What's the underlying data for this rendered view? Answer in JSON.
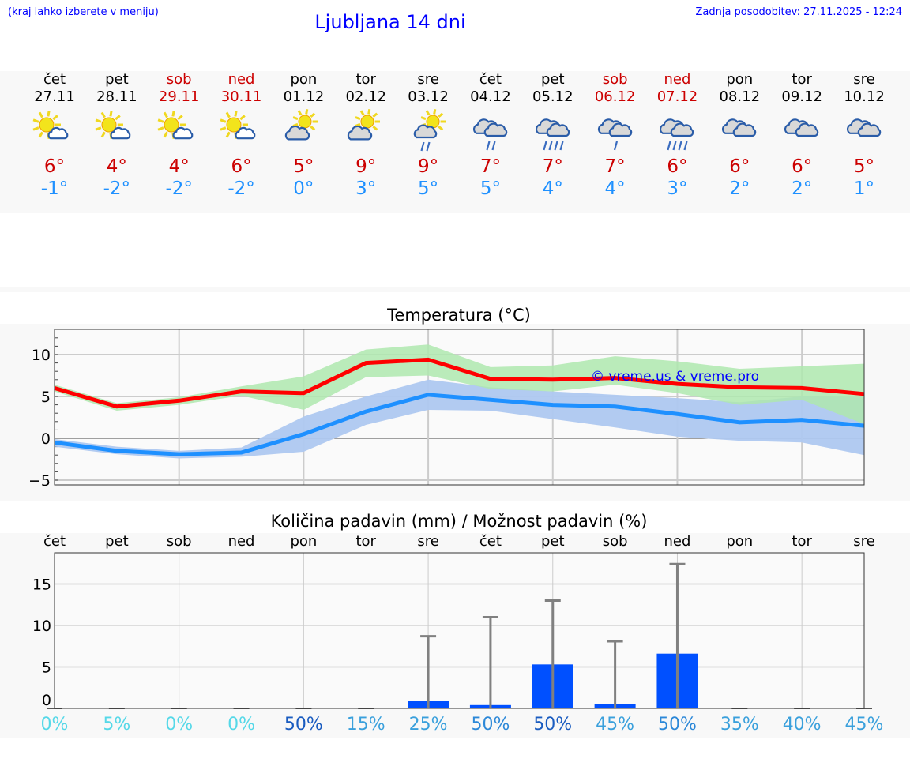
{
  "header": {
    "hint": "(kraj lahko izberete v meniju)",
    "title": "Ljubljana 14 dni",
    "updated": "Zadnja posodobitev: 27.11.2025 - 12:24"
  },
  "days": [
    {
      "name": "čet",
      "date": "27.11",
      "weekend": false,
      "icon": "sun-small-cloud",
      "max": "6°",
      "min": "-1°"
    },
    {
      "name": "pet",
      "date": "28.11",
      "weekend": false,
      "icon": "sun-small-cloud",
      "max": "4°",
      "min": "-2°"
    },
    {
      "name": "sob",
      "date": "29.11",
      "weekend": true,
      "icon": "sun-small-cloud",
      "max": "4°",
      "min": "-2°"
    },
    {
      "name": "ned",
      "date": "30.11",
      "weekend": true,
      "icon": "sun-small-cloud",
      "max": "6°",
      "min": "-2°"
    },
    {
      "name": "pon",
      "date": "01.12",
      "weekend": false,
      "icon": "cloud-sun",
      "max": "5°",
      "min": "0°"
    },
    {
      "name": "tor",
      "date": "02.12",
      "weekend": false,
      "icon": "cloud-sun",
      "max": "9°",
      "min": "3°"
    },
    {
      "name": "sre",
      "date": "03.12",
      "weekend": false,
      "icon": "cloud-sun-rain",
      "max": "9°",
      "min": "5°"
    },
    {
      "name": "čet",
      "date": "04.12",
      "weekend": false,
      "icon": "cloud-rain-2",
      "max": "7°",
      "min": "5°"
    },
    {
      "name": "pet",
      "date": "05.12",
      "weekend": false,
      "icon": "cloud-rain-4",
      "max": "7°",
      "min": "4°"
    },
    {
      "name": "sob",
      "date": "06.12",
      "weekend": true,
      "icon": "cloud-rain-1",
      "max": "7°",
      "min": "4°"
    },
    {
      "name": "ned",
      "date": "07.12",
      "weekend": true,
      "icon": "cloud-rain-4",
      "max": "6°",
      "min": "3°"
    },
    {
      "name": "pon",
      "date": "08.12",
      "weekend": false,
      "icon": "cloud",
      "max": "6°",
      "min": "2°"
    },
    {
      "name": "tor",
      "date": "09.12",
      "weekend": false,
      "icon": "cloud",
      "max": "6°",
      "min": "2°"
    },
    {
      "name": "sre",
      "date": "10.12",
      "weekend": false,
      "icon": "cloud",
      "max": "5°",
      "min": "1°"
    }
  ],
  "colors": {
    "max": "#ff0000",
    "min": "#1e90ff",
    "max_band": "#aee8ae",
    "min_band": "#aec8f0",
    "bar": "#0050ff",
    "whisker": "#808080",
    "weekend": "#cc0000"
  },
  "chart_data": [
    {
      "type": "line",
      "title": "Temperatura (°C)",
      "ylim": [
        -5.6,
        13
      ],
      "yticks": [
        "10",
        "5",
        "0",
        "−5"
      ],
      "ytick_values": [
        10,
        5,
        0,
        -5
      ],
      "grid": true,
      "watermark": "© vreme.us & vreme.pro",
      "x": [
        "27.11",
        "28.11",
        "29.11",
        "30.11",
        "01.12",
        "02.12",
        "03.12",
        "04.12",
        "05.12",
        "06.12",
        "07.12",
        "08.12",
        "09.12",
        "10.12"
      ],
      "series": [
        {
          "key": "max",
          "values": [
            6.0,
            3.8,
            4.5,
            5.6,
            5.4,
            9.0,
            9.4,
            7.1,
            7.0,
            7.2,
            6.5,
            6.1,
            6.0,
            5.3
          ],
          "band_upper": [
            6.4,
            4.2,
            4.9,
            6.2,
            7.4,
            10.6,
            11.2,
            8.5,
            8.7,
            9.8,
            9.2,
            8.3,
            8.6,
            8.9
          ],
          "band_lower": [
            5.6,
            3.3,
            4.0,
            5.1,
            3.4,
            7.3,
            7.5,
            5.9,
            5.6,
            6.4,
            5.4,
            4.0,
            4.6,
            1.7
          ]
        },
        {
          "key": "min",
          "values": [
            -0.5,
            -1.5,
            -1.9,
            -1.7,
            0.5,
            3.2,
            5.2,
            4.6,
            4.0,
            3.8,
            2.9,
            1.9,
            2.2,
            1.5
          ],
          "band_upper": [
            -0.1,
            -1.0,
            -1.5,
            -1.1,
            2.6,
            5.0,
            7.0,
            6.1,
            5.6,
            5.2,
            4.8,
            4.3,
            5.0,
            4.9
          ],
          "band_lower": [
            -1.0,
            -1.9,
            -2.4,
            -2.2,
            -1.6,
            1.6,
            3.4,
            3.3,
            2.3,
            1.3,
            0.2,
            -0.3,
            -0.5,
            -2.0
          ]
        }
      ]
    },
    {
      "type": "bar",
      "title": "Količina padavin (mm) / Možnost padavin (%)",
      "ylim": [
        0,
        18.8
      ],
      "yticks": [
        "15",
        "10",
        "5",
        "0"
      ],
      "ytick_values": [
        15,
        10,
        5,
        0
      ],
      "grid": true,
      "categories": [
        "čet",
        "pet",
        "sob",
        "ned",
        "pon",
        "tor",
        "sre",
        "čet",
        "pet",
        "sob",
        "ned",
        "pon",
        "tor",
        "sre"
      ],
      "values": [
        0,
        0,
        0,
        0,
        0,
        0,
        0.9,
        0.4,
        5.3,
        0.5,
        6.6,
        0,
        0,
        0
      ],
      "error_top": [
        0,
        0,
        0,
        0,
        0,
        0,
        8.7,
        11.0,
        13.0,
        8.1,
        17.4,
        0,
        0,
        0
      ],
      "probability": [
        "0%",
        "5%",
        "0%",
        "0%",
        "50%",
        "15%",
        "25%",
        "50%",
        "50%",
        "45%",
        "50%",
        "35%",
        "40%",
        "45%"
      ],
      "probability_colors": [
        "#55d8e8",
        "#55d8e8",
        "#55d8e8",
        "#55d8e8",
        "#1a5cc0",
        "#3aa0dc",
        "#3aa0dc",
        "#2c88d8",
        "#1a5cc0",
        "#3aa0dc",
        "#2c88d8",
        "#3aa0dc",
        "#3aa0dc",
        "#3aa0dc"
      ]
    }
  ]
}
